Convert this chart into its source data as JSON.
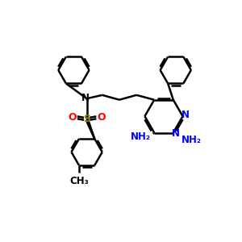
{
  "background_color": "#ffffff",
  "bond_color": "#000000",
  "blue_color": "#0000ff",
  "red_color": "#ff0000",
  "olive_color": "#808000",
  "lw": 1.8,
  "figsize": [
    3.0,
    3.0
  ],
  "dpi": 100,
  "xlim": [
    0,
    10
  ],
  "ylim": [
    0,
    10
  ]
}
